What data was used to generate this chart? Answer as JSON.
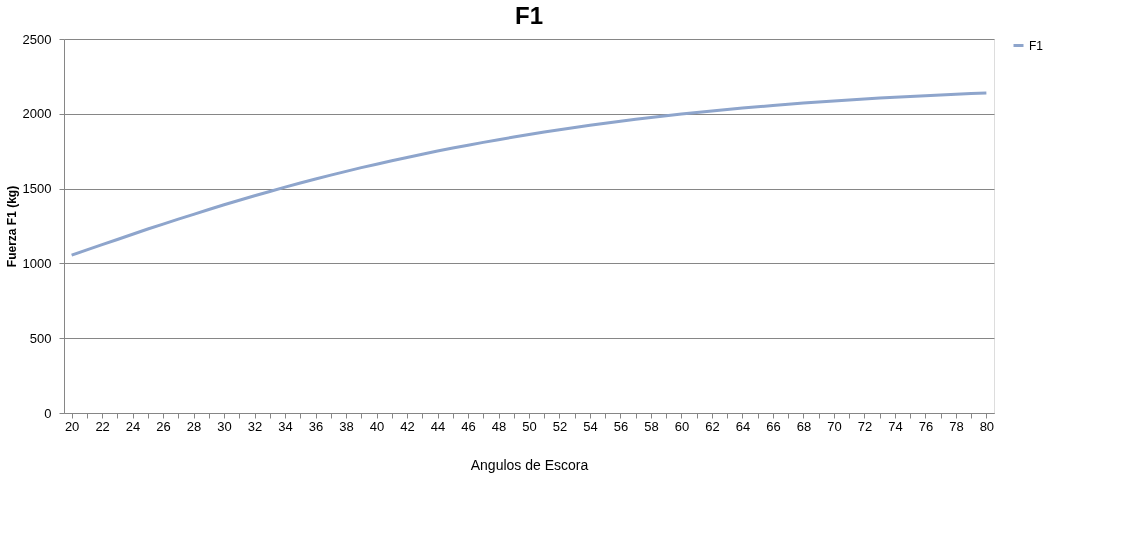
{
  "chart_data": {
    "type": "line",
    "title": "F1",
    "xlabel": "Angulos de Escora",
    "ylabel": "Fuerza F1 (kg)",
    "categories": [
      "20",
      null,
      "22",
      null,
      "24",
      null,
      "26",
      null,
      "28",
      null,
      "30",
      null,
      "32",
      null,
      "34",
      null,
      "36",
      null,
      "38",
      null,
      "40",
      null,
      "42",
      null,
      "44",
      null,
      "46",
      null,
      "48",
      null,
      "50",
      null,
      "52",
      null,
      "54",
      null,
      "56",
      null,
      "58",
      null,
      "60",
      null,
      "62",
      null,
      "64",
      null,
      "66",
      null,
      "68",
      null,
      "70",
      null,
      "72",
      null,
      "74",
      null,
      "76",
      null,
      "78",
      null,
      "80"
    ],
    "series": [
      {
        "name": "F1",
        "color": "#8ea5cc",
        "values": [
          1055,
          1090,
          1125,
          1160,
          1195,
          1230,
          1263,
          1296,
          1328,
          1360,
          1392,
          1422,
          1452,
          1481,
          1510,
          1537,
          1564,
          1590,
          1615,
          1640,
          1663,
          1686,
          1708,
          1730,
          1751,
          1771,
          1790,
          1809,
          1827,
          1845,
          1862,
          1878,
          1893,
          1908,
          1923,
          1937,
          1950,
          1963,
          1975,
          1987,
          1998,
          2009,
          2019,
          2029,
          2038,
          2047,
          2056,
          2064,
          2072,
          2079,
          2086,
          2093,
          2099,
          2105,
          2111,
          2116,
          2121,
          2126,
          2131,
          2135,
          2139
        ]
      }
    ],
    "ylim": [
      0,
      2500
    ],
    "yticks": [
      0,
      500,
      1000,
      1500,
      2000,
      2500
    ],
    "grid": "y",
    "legend": "right",
    "marker": "none",
    "line_style": "solid"
  }
}
